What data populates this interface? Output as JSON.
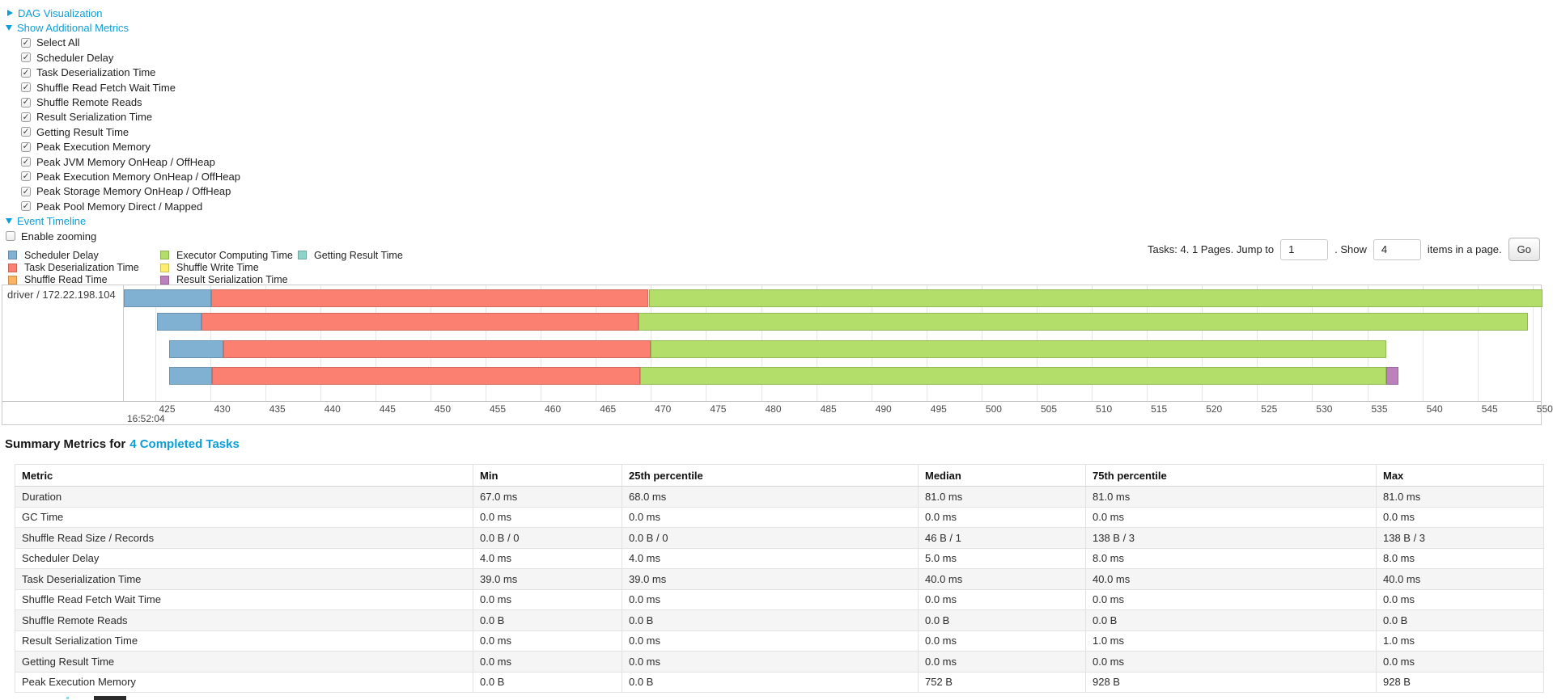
{
  "controls": {
    "dag_label": "DAG Visualization",
    "metrics_label": "Show Additional Metrics",
    "metric_checkboxes": [
      "Select All",
      "Scheduler Delay",
      "Task Deserialization Time",
      "Shuffle Read Fetch Wait Time",
      "Shuffle Remote Reads",
      "Result Serialization Time",
      "Getting Result Time",
      "Peak Execution Memory",
      "Peak JVM Memory OnHeap / OffHeap",
      "Peak Execution Memory OnHeap / OffHeap",
      "Peak Storage Memory OnHeap / OffHeap",
      "Peak Pool Memory Direct / Mapped"
    ],
    "event_timeline_label": "Event Timeline",
    "enable_zooming_label": "Enable zooming"
  },
  "legend": {
    "items": [
      {
        "label": "Scheduler Delay",
        "color": "#80B1D3"
      },
      {
        "label": "Task Deserialization Time",
        "color": "#FB8072"
      },
      {
        "label": "Shuffle Read Time",
        "color": "#FDB462"
      },
      {
        "label": "Executor Computing Time",
        "color": "#B3DE69"
      },
      {
        "label": "Shuffle Write Time",
        "color": "#FFED6F"
      },
      {
        "label": "Result Serialization Time",
        "color": "#BC80BD"
      },
      {
        "label": "Getting Result Time",
        "color": "#8DD3C7"
      }
    ]
  },
  "pagination": {
    "prefix": "Tasks: 4. 1 Pages. Jump to",
    "jump_value": "1",
    "mid": ". Show",
    "show_value": "4",
    "suffix": "items in a page.",
    "go_label": "Go"
  },
  "timeline": {
    "group_label": "driver / 172.22.198.104",
    "axis": {
      "min": 422.1,
      "max": 550.75,
      "ticks": [
        425,
        430,
        435,
        440,
        445,
        450,
        455,
        460,
        465,
        470,
        475,
        480,
        485,
        490,
        495,
        500,
        505,
        510,
        515,
        520,
        525,
        530,
        535,
        540,
        545,
        550
      ],
      "major_label": "16:52:04",
      "unit": "ms within second 16:52:04"
    },
    "colors": {
      "scheduler_delay": "#80B1D3",
      "task_deserialization": "#FB8072",
      "shuffle_read": "#FDB462",
      "executor_computing": "#B3DE69",
      "shuffle_write": "#FFED6F",
      "result_serialization": "#BC80BD",
      "getting_result": "#8DD3C7"
    },
    "tasks": [
      {
        "segments": [
          {
            "type": "scheduler_delay",
            "start": 422.15,
            "end": 430.1
          },
          {
            "type": "task_deserialization",
            "start": 430.1,
            "end": 469.8
          },
          {
            "type": "executor_computing",
            "start": 469.8,
            "end": 550.9
          }
        ]
      },
      {
        "segments": [
          {
            "type": "scheduler_delay",
            "start": 425.2,
            "end": 429.2
          },
          {
            "type": "task_deserialization",
            "start": 429.2,
            "end": 468.9
          },
          {
            "type": "executor_computing",
            "start": 468.9,
            "end": 549.6
          }
        ]
      },
      {
        "segments": [
          {
            "type": "scheduler_delay",
            "start": 426.3,
            "end": 431.2
          },
          {
            "type": "task_deserialization",
            "start": 431.2,
            "end": 470.0
          },
          {
            "type": "executor_computing",
            "start": 470.0,
            "end": 536.7
          }
        ]
      },
      {
        "segments": [
          {
            "type": "scheduler_delay",
            "start": 426.3,
            "end": 430.2
          },
          {
            "type": "task_deserialization",
            "start": 430.2,
            "end": 469.0
          },
          {
            "type": "executor_computing",
            "start": 469.0,
            "end": 536.75
          },
          {
            "type": "result_serialization",
            "start": 536.75,
            "end": 537.85
          }
        ]
      }
    ]
  },
  "summary": {
    "title_prefix": "Summary Metrics for",
    "title_link": "4 Completed Tasks",
    "table": {
      "headers": [
        "Metric",
        "Min",
        "25th percentile",
        "Median",
        "75th percentile",
        "Max"
      ],
      "rows": [
        [
          "Duration",
          "67.0 ms",
          "68.0 ms",
          "81.0 ms",
          "81.0 ms",
          "81.0 ms"
        ],
        [
          "GC Time",
          "0.0 ms",
          "0.0 ms",
          "0.0 ms",
          "0.0 ms",
          "0.0 ms"
        ],
        [
          "Shuffle Read Size / Records",
          "0.0 B / 0",
          "0.0 B / 0",
          "46 B / 1",
          "138 B / 3",
          "138 B / 3"
        ],
        [
          "Scheduler Delay",
          "4.0 ms",
          "4.0 ms",
          "5.0 ms",
          "8.0 ms",
          "8.0 ms"
        ],
        [
          "Task Deserialization Time",
          "39.0 ms",
          "39.0 ms",
          "40.0 ms",
          "40.0 ms",
          "40.0 ms"
        ],
        [
          "Shuffle Read Fetch Wait Time",
          "0.0 ms",
          "0.0 ms",
          "0.0 ms",
          "0.0 ms",
          "0.0 ms"
        ],
        [
          "Shuffle Remote Reads",
          "0.0 B",
          "0.0 B",
          "0.0 B",
          "0.0 B",
          "0.0 B"
        ],
        [
          "Result Serialization Time",
          "0.0 ms",
          "0.0 ms",
          "0.0 ms",
          "1.0 ms",
          "1.0 ms"
        ],
        [
          "Getting Result Time",
          "0.0 ms",
          "0.0 ms",
          "0.0 ms",
          "0.0 ms",
          "0.0 ms"
        ],
        [
          "Peak Execution Memory",
          "0.0 B",
          "0.0 B",
          "752 B",
          "928 B",
          "928 B"
        ]
      ]
    }
  }
}
